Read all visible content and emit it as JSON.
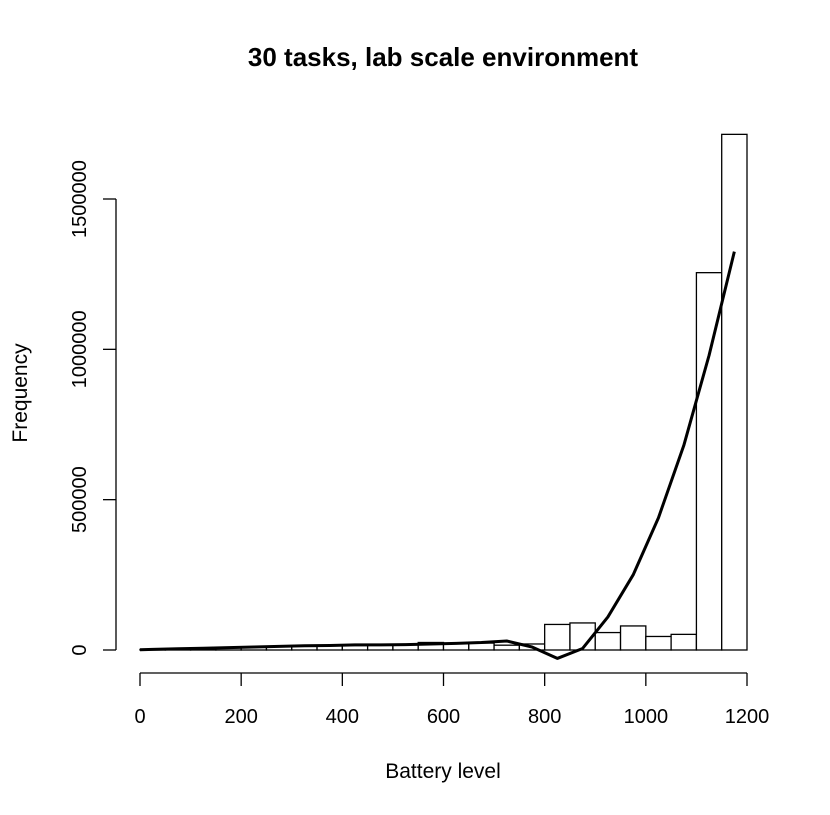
{
  "chart_data": {
    "type": "bar",
    "title": "30 tasks, lab scale environment",
    "xlabel": "Battery level",
    "ylabel": "Frequency",
    "xlim": [
      0,
      1200
    ],
    "ylim": [
      0,
      1500000
    ],
    "x_ticks": [
      "0",
      "200",
      "400",
      "600",
      "800",
      "1000",
      "1200"
    ],
    "y_ticks": [
      "0",
      "500000",
      "1000000",
      "1500000"
    ],
    "grid": false,
    "legend": "none",
    "histogram": {
      "bin_width": 50,
      "bin_starts": [
        0,
        50,
        100,
        150,
        200,
        250,
        300,
        350,
        400,
        450,
        500,
        550,
        600,
        650,
        700,
        750,
        800,
        850,
        900,
        950,
        1000,
        1050,
        1100,
        1150
      ],
      "counts": [
        2000,
        3000,
        5000,
        7000,
        9000,
        11000,
        12000,
        14000,
        15000,
        16000,
        17000,
        25000,
        21000,
        23000,
        16000,
        20000,
        85000,
        90000,
        58000,
        80000,
        45000,
        52000,
        1255000,
        1715000
      ]
    },
    "curve": {
      "name": "",
      "x": [
        0,
        25,
        75,
        125,
        175,
        225,
        275,
        325,
        375,
        425,
        475,
        525,
        575,
        625,
        675,
        725,
        775,
        825,
        875,
        925,
        975,
        1025,
        1075,
        1125,
        1175
      ],
      "y": [
        1000,
        2000,
        4000,
        6000,
        8000,
        10000,
        12000,
        14000,
        15000,
        17000,
        17000,
        18000,
        20000,
        22000,
        25000,
        30000,
        10000,
        -28000,
        5000,
        110000,
        250000,
        440000,
        680000,
        980000,
        1325000
      ]
    }
  }
}
